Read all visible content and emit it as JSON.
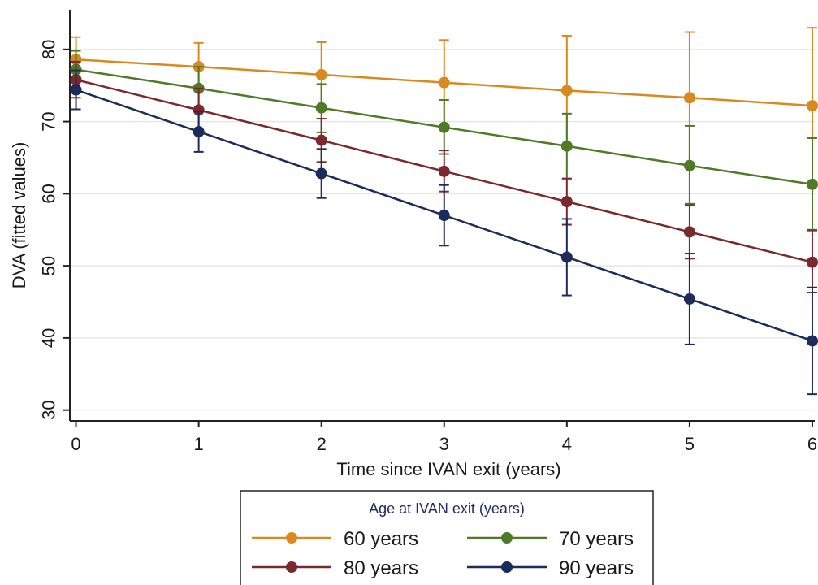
{
  "chart_data": {
    "type": "line",
    "title": "",
    "xlabel": "Time since IVAN exit (years)",
    "ylabel": "DVA (fitted values)",
    "x": [
      0,
      1,
      2,
      3,
      4,
      5,
      6
    ],
    "xticks": [
      0,
      1,
      2,
      3,
      4,
      5,
      6
    ],
    "yticks": [
      30,
      40,
      50,
      60,
      70,
      80
    ],
    "xlim": [
      -0.05,
      6.02
    ],
    "ylim": [
      28.5,
      85.5
    ],
    "grid": true,
    "legend": {
      "title": "Age at IVAN exit (years)",
      "placement": "bottom",
      "columns": 2
    },
    "series": [
      {
        "name": "60 years",
        "color": "#d98a1f",
        "values": [
          78.6,
          77.6,
          76.5,
          75.4,
          74.3,
          73.3,
          72.2
        ],
        "ci_low": [
          75.5,
          74.3,
          72.0,
          69.5,
          66.7,
          64.2,
          61.4
        ],
        "ci_high": [
          81.7,
          80.9,
          81.0,
          81.3,
          81.9,
          82.4,
          83.0
        ]
      },
      {
        "name": "70 years",
        "color": "#4f7a28",
        "values": [
          77.2,
          74.6,
          71.9,
          69.2,
          66.6,
          63.9,
          61.3
        ],
        "ci_low": [
          74.6,
          71.6,
          68.5,
          65.5,
          62.1,
          58.6,
          55.0
        ],
        "ci_high": [
          79.8,
          77.6,
          75.2,
          73.0,
          71.1,
          69.4,
          67.7
        ]
      },
      {
        "name": "80 years",
        "color": "#7a2a2e",
        "values": [
          75.8,
          71.6,
          67.4,
          63.1,
          58.9,
          54.7,
          50.5
        ],
        "ci_low": [
          73.3,
          68.6,
          64.4,
          60.3,
          55.7,
          51.0,
          46.3
        ],
        "ci_high": [
          78.3,
          74.6,
          70.4,
          66.0,
          62.1,
          58.4,
          54.9
        ]
      },
      {
        "name": "90 years",
        "color": "#1b2c5a",
        "values": [
          74.4,
          68.6,
          62.8,
          57.0,
          51.2,
          45.4,
          39.6
        ],
        "ci_low": [
          71.7,
          65.8,
          59.4,
          52.8,
          45.9,
          39.1,
          32.2
        ],
        "ci_high": [
          77.1,
          71.4,
          66.2,
          61.2,
          56.5,
          51.7,
          47.0
        ]
      }
    ]
  }
}
